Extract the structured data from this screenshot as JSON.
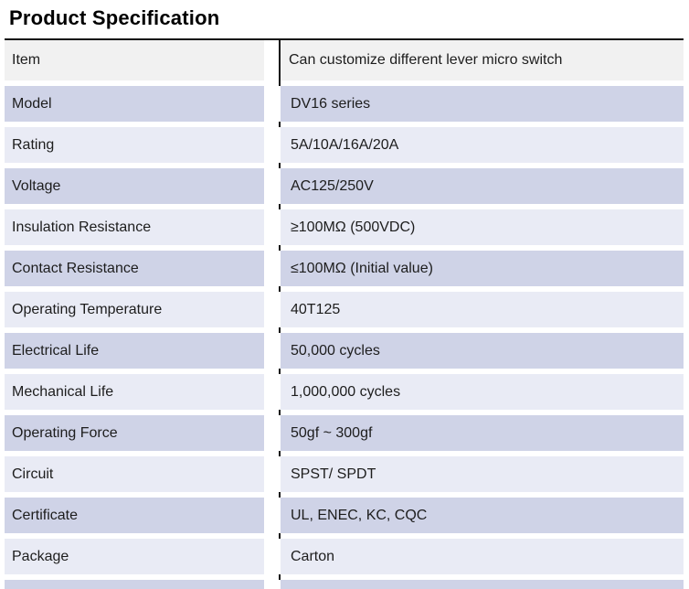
{
  "page": {
    "title": "Product Specification"
  },
  "table": {
    "rows": [
      {
        "label": "Item",
        "value": "Can customize different lever micro switch"
      },
      {
        "label": "Model",
        "value": "DV16 series"
      },
      {
        "label": "Rating",
        "value": "5A/10A/16A/20A"
      },
      {
        "label": "Voltage",
        "value": "AC125/250V"
      },
      {
        "label": "Insulation Resistance",
        "value": "≥100MΩ (500VDC)"
      },
      {
        "label": "Contact Resistance",
        "value": "≤100MΩ (Initial value)"
      },
      {
        "label": "Operating Temperature",
        "value": "40T125"
      },
      {
        "label": "Electrical Life",
        "value": "50,000 cycles"
      },
      {
        "label": "Mechanical Life",
        "value": "1,000,000 cycles"
      },
      {
        "label": "Operating Force",
        "value": "50gf ~ 300gf"
      },
      {
        "label": "Circuit",
        "value": "SPST/ SPDT"
      },
      {
        "label": "Certificate",
        "value": "UL, ENEC, KC, CQC"
      },
      {
        "label": "Package",
        "value": "Carton"
      }
    ]
  },
  "colors": {
    "header_row_bg": "#f1f1f1",
    "row_dark_bg": "#cfd3e7",
    "row_light_bg": "#e9ebf5",
    "border_line": "#111111",
    "text": "#1d1d1d",
    "title_text": "#000000"
  }
}
